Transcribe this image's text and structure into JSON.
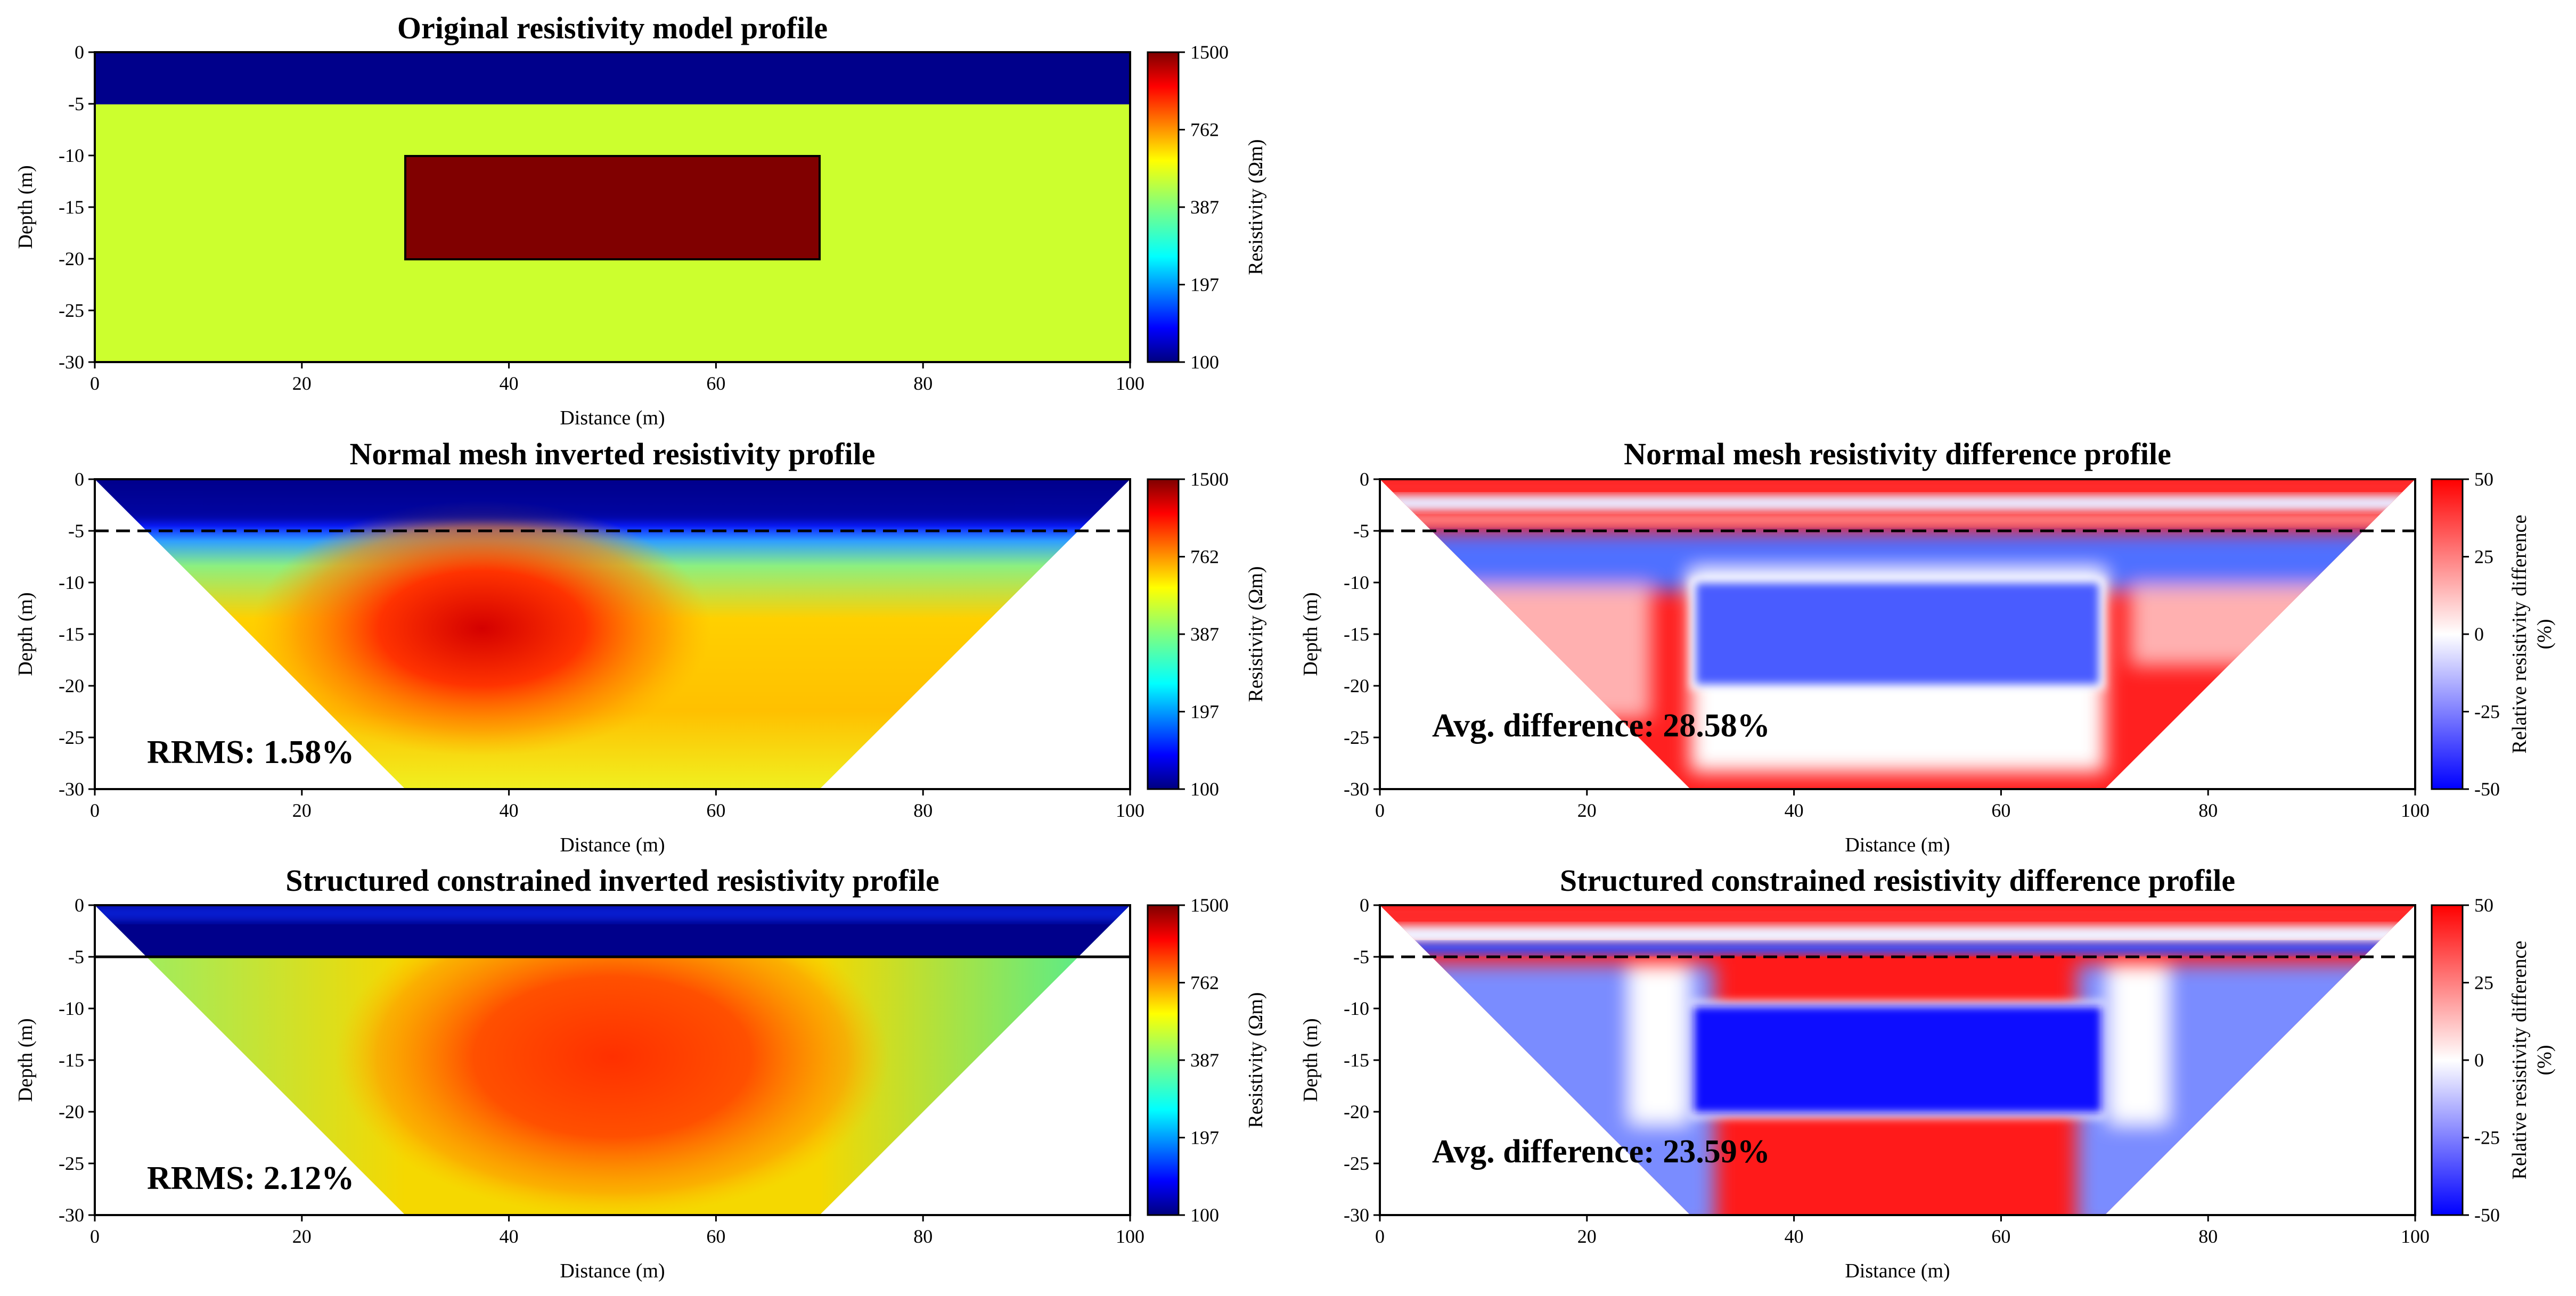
{
  "colors": {
    "jet_stops": [
      "#00007f",
      "#0000ff",
      "#007fff",
      "#00ffff",
      "#7fff7f",
      "#ffff00",
      "#ff7f00",
      "#ff0000",
      "#7f0000"
    ],
    "bwr_stops": [
      "#0000ff",
      "#ffffff",
      "#ff0000"
    ],
    "surface_layer": "#00008b",
    "background_layer": "#ccff2e",
    "anomaly_block": "#800000"
  },
  "chart_data": [
    {
      "id": "original",
      "type": "heatmap",
      "title": "Original resistivity model profile",
      "xlabel": "Distance (m)",
      "ylabel": "Depth (m)",
      "xlim": [
        0,
        100
      ],
      "ylim": [
        -30,
        0
      ],
      "xticks": [
        "0",
        "20",
        "40",
        "60",
        "80",
        "100"
      ],
      "yticks": [
        "0",
        "-5",
        "-10",
        "-15",
        "-20",
        "-25",
        "-30"
      ],
      "colorbar": {
        "label": "Resistivity (Ωm)",
        "ticks": [
          "100",
          "197",
          "387",
          "762",
          "1500"
        ],
        "range": [
          100,
          1500
        ],
        "scale": "log",
        "cmap": "jet"
      },
      "model": {
        "surface_layer": {
          "depth_range": [
            0,
            -5
          ],
          "resistivity": 100
        },
        "background": {
          "depth_range": [
            -5,
            -30
          ],
          "resistivity": 500
        },
        "anomaly": {
          "x_range": [
            30,
            70
          ],
          "depth_range": [
            -10,
            -20
          ],
          "resistivity": 1500
        }
      }
    },
    {
      "id": "normal_inv",
      "type": "heatmap",
      "title": "Normal mesh inverted resistivity profile",
      "xlabel": "Distance (m)",
      "ylabel": "Depth (m)",
      "xlim": [
        0,
        100
      ],
      "ylim": [
        -30,
        0
      ],
      "xticks": [
        "0",
        "20",
        "40",
        "60",
        "80",
        "100"
      ],
      "yticks": [
        "0",
        "-5",
        "-10",
        "-15",
        "-20",
        "-25",
        "-30"
      ],
      "colorbar": {
        "label": "Resistivity (Ωm)",
        "ticks": [
          "100",
          "197",
          "387",
          "762",
          "1500"
        ],
        "range": [
          100,
          1500
        ],
        "scale": "log",
        "cmap": "jet"
      },
      "boundary_line": {
        "depth": -5,
        "style": "dashed"
      },
      "coverage_triangle": {
        "top": [
          0,
          100
        ],
        "bottom": [
          30,
          70
        ],
        "depth": -30
      },
      "annotation": "RRMS: 1.58%",
      "rrms_percent": 1.58
    },
    {
      "id": "normal_diff",
      "type": "heatmap",
      "title": "Normal mesh resistivity difference profile",
      "xlabel": "Distance (m)",
      "ylabel": "Depth (m)",
      "xlim": [
        0,
        100
      ],
      "ylim": [
        -30,
        0
      ],
      "xticks": [
        "0",
        "20",
        "40",
        "60",
        "80",
        "100"
      ],
      "yticks": [
        "0",
        "-5",
        "-10",
        "-15",
        "-20",
        "-25",
        "-30"
      ],
      "colorbar": {
        "label_line1": "Relative resistivity difference",
        "label_line2": "(%)",
        "ticks": [
          "50",
          "25",
          "0",
          "-25",
          "-50"
        ],
        "range": [
          -50,
          50
        ],
        "cmap": "bwr"
      },
      "boundary_line": {
        "depth": -5,
        "style": "dashed"
      },
      "coverage_triangle": {
        "top": [
          0,
          100
        ],
        "bottom": [
          30,
          70
        ],
        "depth": -30
      },
      "annotation": "Avg. difference: 28.58%",
      "avg_difference_percent": 28.58
    },
    {
      "id": "struct_inv",
      "type": "heatmap",
      "title": "Structured constrained inverted resistivity profile",
      "xlabel": "Distance (m)",
      "ylabel": "Depth (m)",
      "xlim": [
        0,
        100
      ],
      "ylim": [
        -30,
        0
      ],
      "xticks": [
        "0",
        "20",
        "40",
        "60",
        "80",
        "100"
      ],
      "yticks": [
        "0",
        "-5",
        "-10",
        "-15",
        "-20",
        "-25",
        "-30"
      ],
      "colorbar": {
        "label": "Resistivity (Ωm)",
        "ticks": [
          "100",
          "197",
          "387",
          "762",
          "1500"
        ],
        "range": [
          100,
          1500
        ],
        "scale": "log",
        "cmap": "jet"
      },
      "boundary_line": {
        "depth": -5,
        "style": "solid"
      },
      "coverage_triangle": {
        "top": [
          0,
          100
        ],
        "bottom": [
          30,
          70
        ],
        "depth": -30
      },
      "annotation": "RRMS: 2.12%",
      "rrms_percent": 2.12
    },
    {
      "id": "struct_diff",
      "type": "heatmap",
      "title": "Structured constrained resistivity difference profile",
      "xlabel": "Distance (m)",
      "ylabel": "Depth (m)",
      "xlim": [
        0,
        100
      ],
      "ylim": [
        -30,
        0
      ],
      "xticks": [
        "0",
        "20",
        "40",
        "60",
        "80",
        "100"
      ],
      "yticks": [
        "0",
        "-5",
        "-10",
        "-15",
        "-20",
        "-25",
        "-30"
      ],
      "colorbar": {
        "label_line1": "Relative resistivity difference",
        "label_line2": "(%)",
        "ticks": [
          "50",
          "25",
          "0",
          "-25",
          "-50"
        ],
        "range": [
          -50,
          50
        ],
        "cmap": "bwr"
      },
      "boundary_line": {
        "depth": -5,
        "style": "dashed"
      },
      "coverage_triangle": {
        "top": [
          0,
          100
        ],
        "bottom": [
          30,
          70
        ],
        "depth": -30
      },
      "annotation": "Avg. difference: 23.59%",
      "avg_difference_percent": 23.59
    }
  ]
}
